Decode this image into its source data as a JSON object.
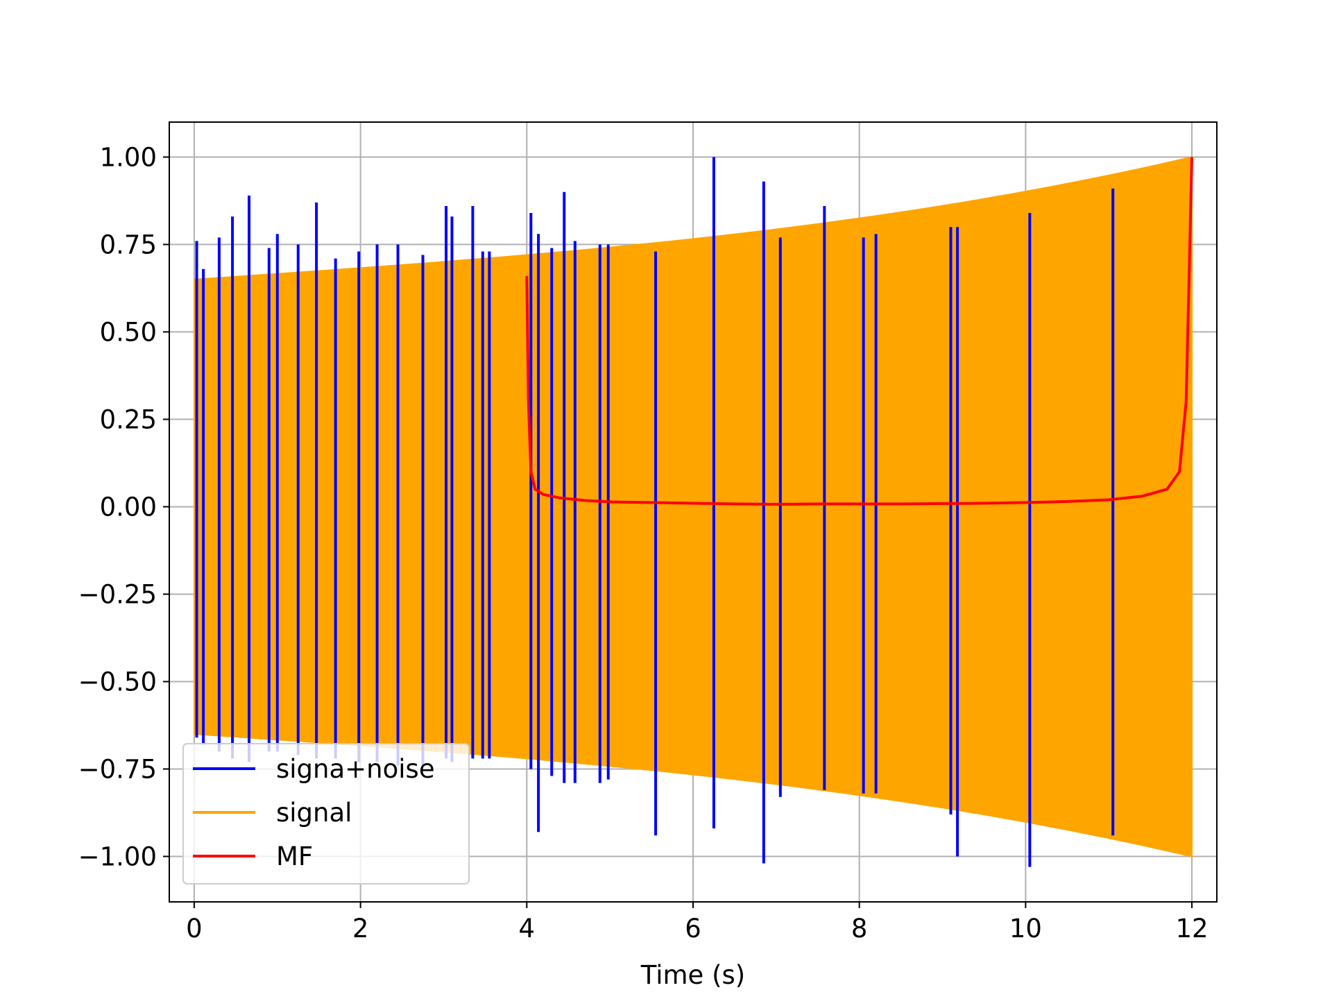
{
  "chart_data": {
    "type": "line",
    "xlabel": "Time (s)",
    "ylabel": "",
    "title": "",
    "xlim": [
      -0.3,
      12.3
    ],
    "ylim": [
      -1.13,
      1.1
    ],
    "x_ticks": [
      0,
      2,
      4,
      6,
      8,
      10,
      12
    ],
    "x_tick_labels": [
      "0",
      "2",
      "4",
      "6",
      "8",
      "10",
      "12"
    ],
    "y_ticks": [
      1.0,
      0.75,
      0.5,
      0.25,
      0.0,
      -0.25,
      -0.5,
      -0.75,
      -1.0
    ],
    "y_tick_labels": [
      "1.00",
      "0.75",
      "0.50",
      "0.25",
      "0.00",
      "−0.25",
      "−0.50",
      "−0.75",
      "−1.00"
    ],
    "grid": true,
    "legend_position": "lower-left",
    "series": [
      {
        "name": "signa+noise",
        "color": "#0000ff",
        "spikes": [
          [
            0.03,
            0.76,
            -0.66
          ],
          [
            0.11,
            0.68,
            -0.68
          ],
          [
            0.3,
            0.77,
            -0.7
          ],
          [
            0.46,
            0.83,
            -0.72
          ],
          [
            0.66,
            0.89,
            -0.73
          ],
          [
            0.9,
            0.74,
            -0.7
          ],
          [
            1.0,
            0.78,
            -0.7
          ],
          [
            1.25,
            0.75,
            -0.71
          ],
          [
            1.47,
            0.87,
            -0.72
          ],
          [
            1.7,
            0.71,
            -0.72
          ],
          [
            1.98,
            0.73,
            -0.73
          ],
          [
            2.2,
            0.75,
            -0.73
          ],
          [
            2.45,
            0.75,
            -0.74
          ],
          [
            2.75,
            0.72,
            -0.74
          ],
          [
            3.03,
            0.86,
            -0.72
          ],
          [
            3.1,
            0.83,
            -0.73
          ],
          [
            3.35,
            0.86,
            -0.72
          ],
          [
            3.47,
            0.73,
            -0.72
          ],
          [
            3.55,
            0.73,
            -0.72
          ],
          [
            4.05,
            0.84,
            -0.75
          ],
          [
            4.14,
            0.78,
            -0.93
          ],
          [
            4.3,
            0.74,
            -0.77
          ],
          [
            4.45,
            0.9,
            -0.79
          ],
          [
            4.58,
            0.76,
            -0.79
          ],
          [
            4.88,
            0.75,
            -0.79
          ],
          [
            4.98,
            0.75,
            -0.78
          ],
          [
            5.55,
            0.73,
            -0.94
          ],
          [
            6.25,
            1.0,
            -0.92
          ],
          [
            6.85,
            0.93,
            -1.02
          ],
          [
            7.05,
            0.77,
            -0.83
          ],
          [
            7.58,
            0.86,
            -0.81
          ],
          [
            8.05,
            0.77,
            -0.82
          ],
          [
            8.2,
            0.78,
            -0.82
          ],
          [
            9.1,
            0.8,
            -0.88
          ],
          [
            9.18,
            0.8,
            -1.0
          ],
          [
            10.05,
            0.84,
            -1.03
          ],
          [
            11.05,
            0.91,
            -0.94
          ]
        ]
      },
      {
        "name": "signal",
        "color": "#ffa500",
        "start_time": 0.0,
        "end_time": 12.0,
        "amplitude_at_start": 0.65,
        "amplitude_at_end": 1.0
      },
      {
        "name": "MF",
        "color": "#ff0000",
        "points": [
          [
            4.0,
            0.66
          ],
          [
            4.02,
            0.3
          ],
          [
            4.05,
            0.1
          ],
          [
            4.1,
            0.05
          ],
          [
            4.2,
            0.035
          ],
          [
            4.4,
            0.025
          ],
          [
            4.7,
            0.018
          ],
          [
            5.0,
            0.014
          ],
          [
            5.5,
            0.012
          ],
          [
            6.0,
            0.01
          ],
          [
            6.5,
            0.008
          ],
          [
            7.0,
            0.007
          ],
          [
            7.5,
            0.008
          ],
          [
            8.0,
            0.008
          ],
          [
            8.5,
            0.008
          ],
          [
            9.0,
            0.009
          ],
          [
            9.5,
            0.01
          ],
          [
            10.0,
            0.012
          ],
          [
            10.5,
            0.015
          ],
          [
            11.0,
            0.02
          ],
          [
            11.4,
            0.03
          ],
          [
            11.7,
            0.05
          ],
          [
            11.85,
            0.1
          ],
          [
            11.93,
            0.3
          ],
          [
            11.97,
            0.7
          ],
          [
            12.0,
            1.0
          ]
        ]
      }
    ]
  }
}
